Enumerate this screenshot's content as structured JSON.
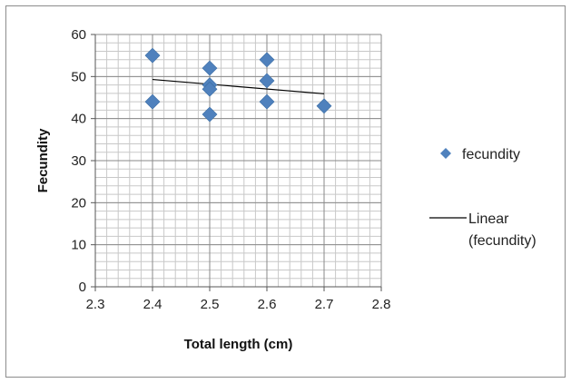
{
  "chart_data": {
    "type": "scatter",
    "title": "",
    "xlabel": "Total length (cm)",
    "ylabel": "Fecundity",
    "xlim": [
      2.3,
      2.8
    ],
    "ylim": [
      0,
      60
    ],
    "xticks": [
      "2.3",
      "2.4",
      "2.5",
      "2.6",
      "2.7",
      "2.8"
    ],
    "yticks": [
      "0",
      "10",
      "20",
      "30",
      "40",
      "50",
      "60"
    ],
    "grid": true,
    "legend_position": "right",
    "series": [
      {
        "name": "fecundity",
        "color": "#4f81bd",
        "marker": "diamond",
        "points": [
          {
            "x": 2.4,
            "y": 55
          },
          {
            "x": 2.4,
            "y": 44
          },
          {
            "x": 2.5,
            "y": 52
          },
          {
            "x": 2.5,
            "y": 48
          },
          {
            "x": 2.5,
            "y": 47
          },
          {
            "x": 2.5,
            "y": 41
          },
          {
            "x": 2.6,
            "y": 54
          },
          {
            "x": 2.6,
            "y": 49
          },
          {
            "x": 2.6,
            "y": 44
          },
          {
            "x": 2.7,
            "y": 43
          }
        ]
      }
    ],
    "trendline": {
      "name_line1": "Linear",
      "name_line2": "(fecundity)",
      "type": "linear",
      "color": "#000000",
      "x_range": [
        2.4,
        2.7
      ],
      "start_y": 49.3,
      "end_y": 45.9
    }
  }
}
